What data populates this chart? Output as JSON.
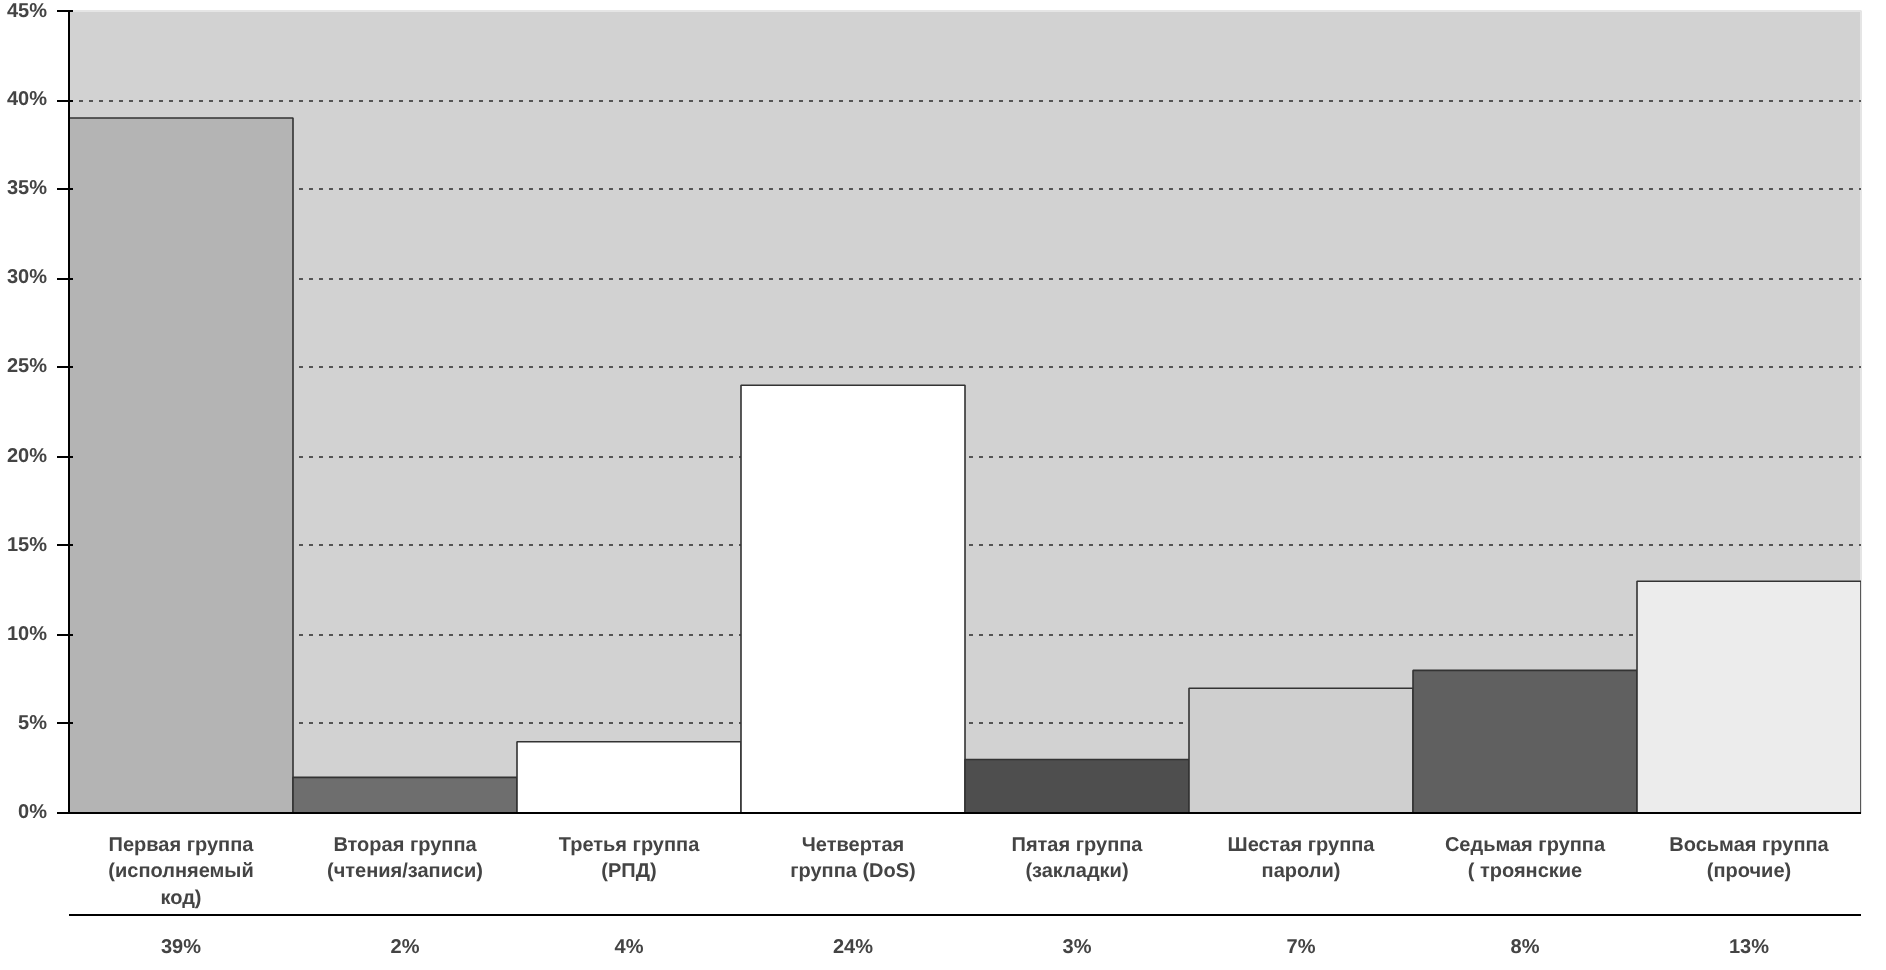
{
  "chart_data": {
    "type": "bar",
    "categories": [
      "Первая группа (исполняемый код)",
      "Вторая группа (чтения/записи)",
      "Третья группа (РПД)",
      "Четвертая группа (DoS)",
      "Пятая группа (закладки)",
      "Шестая группа пароли)",
      "Седьмая группа ( троянские",
      "Восьмая группа (прочие)"
    ],
    "values": [
      39,
      2,
      4,
      24,
      3,
      7,
      8,
      13
    ],
    "colors": [
      "#b4b4b4",
      "#6e6e6e",
      "#ffffff",
      "#ffffff",
      "#4e4e4e",
      "#cfcfcf",
      "#606060",
      "#ececec"
    ],
    "value_labels": [
      "39%",
      "2%",
      "4%",
      "24%",
      "3%",
      "7%",
      "8%",
      "13%"
    ],
    "ylim": [
      0,
      45
    ],
    "yticks": [
      {
        "value": 0,
        "label": "0%"
      },
      {
        "value": 5,
        "label": "5%"
      },
      {
        "value": 10,
        "label": "10%"
      },
      {
        "value": 15,
        "label": "15%"
      },
      {
        "value": 20,
        "label": "20%"
      },
      {
        "value": 25,
        "label": "25%"
      },
      {
        "value": 30,
        "label": "30%"
      },
      {
        "value": 35,
        "label": "35%"
      },
      {
        "value": 40,
        "label": "40%"
      },
      {
        "value": 45,
        "label": "45%"
      }
    ],
    "grid": "y"
  }
}
